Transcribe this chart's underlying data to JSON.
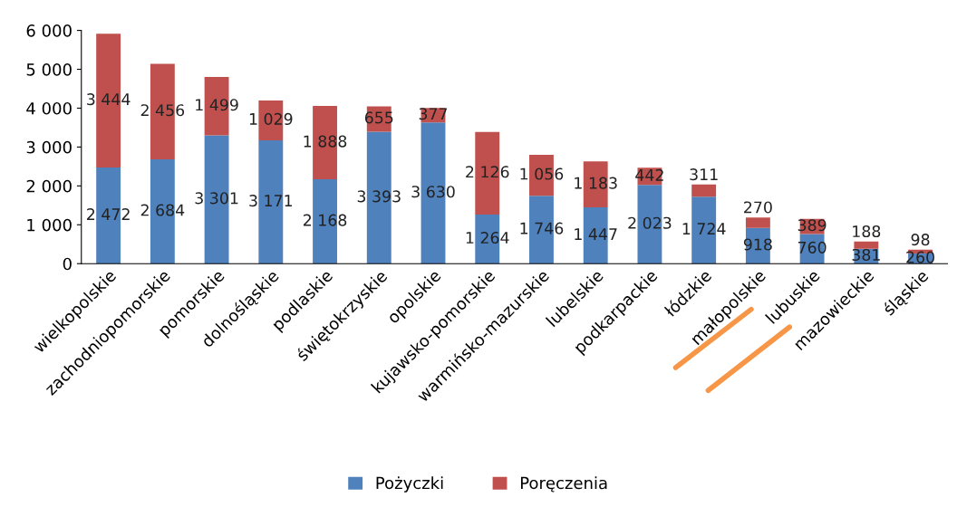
{
  "chart_data": {
    "type": "bar",
    "stacked": true,
    "categories": [
      "wielkopolskie",
      "zachodniopomorskie",
      "pomorskie",
      "dolnośląskie",
      "podlaskie",
      "świętokrzyskie",
      "opolskie",
      "kujawsko-pomorskie",
      "warmińsko-mazurskie",
      "lubelskie",
      "podkarpackie",
      "łódzkie",
      "małopolskie",
      "lubuskie",
      "mazowieckie",
      "śląskie"
    ],
    "series": [
      {
        "name": "Pożyczki",
        "color": "#4f81bd",
        "values": [
          2472,
          2684,
          3301,
          3171,
          2168,
          3393,
          3630,
          1264,
          1746,
          1447,
          2023,
          1724,
          918,
          760,
          381,
          260
        ],
        "value_labels": [
          "2 472",
          "2 684",
          "3 301",
          "3 171",
          "2 168",
          "3 393",
          "3 630",
          "1 264",
          "1 746",
          "1 447",
          "2 023",
          "1 724",
          "918",
          "760",
          "381",
          "260"
        ]
      },
      {
        "name": "Poręczenia",
        "color": "#c0504d",
        "values": [
          3444,
          2456,
          1499,
          1029,
          1888,
          655,
          377,
          2126,
          1056,
          1183,
          442,
          311,
          270,
          389,
          188,
          98
        ],
        "value_labels": [
          "3 444",
          "2 456",
          "1 499",
          "1 029",
          "1 888",
          "655",
          "377",
          "2 126",
          "1 056",
          "1 183",
          "442",
          "311",
          "270",
          "389",
          "188",
          "98"
        ]
      }
    ],
    "ylim": [
      0,
      6000
    ],
    "yticks": [
      0,
      {
        "value": 1000,
        "label": "1 000"
      },
      {
        "value": 2000,
        "label": "2 000"
      },
      {
        "value": 3000,
        "label": "3 000"
      },
      {
        "value": 4000,
        "label": "4 000"
      },
      {
        "value": 5000,
        "label": "5 000"
      },
      {
        "value": 6000,
        "label": "6 000"
      }
    ],
    "grid": false,
    "legend": "bottom"
  }
}
